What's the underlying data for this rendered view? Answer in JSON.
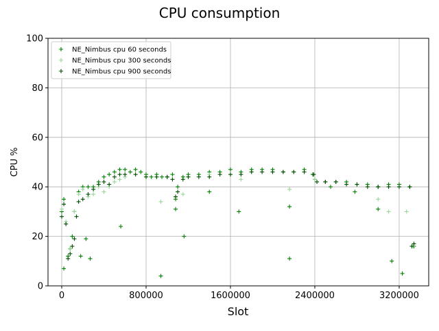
{
  "chart_data": {
    "type": "scatter",
    "title": "CPU consumption",
    "xlabel": "Slot",
    "ylabel": "CPU %",
    "xlim": [
      -130000,
      3480000
    ],
    "ylim": [
      0,
      100
    ],
    "xticks": [
      0,
      800000,
      1600000,
      2400000,
      3200000
    ],
    "xtick_labels": [
      "0",
      "800000",
      "1600000",
      "2400000",
      "3200000"
    ],
    "yticks": [
      0,
      20,
      40,
      60,
      80,
      100
    ],
    "ytick_labels": [
      "0",
      "20",
      "40",
      "60",
      "80",
      "100"
    ],
    "grid": true,
    "legend_position": "top-left",
    "marker": "+",
    "series": [
      {
        "name": "NE_Nimbus cpu 60 seconds",
        "color": "#008000",
        "x": [
          0,
          20000,
          40000,
          60000,
          80000,
          100000,
          120000,
          160000,
          200000,
          250000,
          300000,
          350000,
          400000,
          450000,
          500000,
          550000,
          600000,
          650000,
          700000,
          750000,
          800000,
          850000,
          900000,
          950000,
          1000000,
          1050000,
          1080000,
          1100000,
          1150000,
          1200000,
          1300000,
          1400000,
          1500000,
          1600000,
          1700000,
          1800000,
          1900000,
          2000000,
          2100000,
          2200000,
          2300000,
          2380000,
          2400000,
          2500000,
          2600000,
          2700000,
          2800000,
          2900000,
          3000000,
          3100000,
          3200000,
          3300000,
          3340000,
          20000,
          180000,
          230000,
          270000,
          560000,
          940000,
          1080000,
          1160000,
          1400000,
          1680000,
          2160000,
          2160000,
          2550000,
          2780000,
          3000000,
          3130000,
          3230000
        ],
        "y": [
          30,
          35,
          25,
          12,
          15,
          20,
          30,
          38,
          40,
          40,
          40,
          42,
          44,
          45,
          46,
          47,
          47,
          46,
          47,
          46,
          45,
          44,
          45,
          44,
          44,
          45,
          35,
          40,
          44,
          45,
          45,
          46,
          46,
          47,
          46,
          47,
          47,
          47,
          46,
          46,
          47,
          45,
          43,
          42,
          42,
          42,
          41,
          41,
          40,
          41,
          41,
          40,
          16,
          7,
          12,
          19,
          11,
          24,
          4,
          31,
          20,
          38,
          30,
          11,
          32,
          40,
          38,
          31,
          10,
          5
        ]
      },
      {
        "name": "NE_Nimbus cpu 300 seconds",
        "color": "#99d699",
        "x": [
          0,
          40000,
          80000,
          120000,
          160000,
          200000,
          250000,
          300000,
          350000,
          400000,
          450000,
          500000,
          550000,
          600000,
          700000,
          800000,
          900000,
          940000,
          1000000,
          1080000,
          1150000,
          1200000,
          1400000,
          1600000,
          1700000,
          1800000,
          2000000,
          2160000,
          2200000,
          2400000,
          2600000,
          2800000,
          3000000,
          3100000,
          3200000,
          3270000,
          3330000
        ],
        "y": [
          31,
          26,
          15,
          30,
          37,
          39,
          36,
          37,
          40,
          38,
          40,
          42,
          43,
          44,
          45,
          44,
          44,
          34,
          44,
          36,
          37,
          44,
          45,
          45,
          43,
          46,
          46,
          39,
          46,
          43,
          42,
          41,
          35,
          30,
          40,
          30,
          16
        ]
      },
      {
        "name": "NE_Nimbus cpu 900 seconds",
        "color": "#004d00",
        "x": [
          0,
          20000,
          40000,
          60000,
          80000,
          100000,
          120000,
          140000,
          160000,
          200000,
          250000,
          300000,
          350000,
          400000,
          450000,
          500000,
          550000,
          600000,
          700000,
          800000,
          900000,
          1000000,
          1050000,
          1080000,
          1100000,
          1150000,
          1200000,
          1300000,
          1400000,
          1500000,
          1600000,
          1700000,
          1800000,
          1900000,
          2000000,
          2100000,
          2200000,
          2300000,
          2390000,
          2420000,
          2500000,
          2600000,
          2700000,
          2800000,
          2900000,
          3000000,
          3100000,
          3200000,
          3300000,
          3320000,
          3340000
        ],
        "y": [
          28,
          33,
          25,
          11,
          13,
          16,
          19,
          28,
          34,
          35,
          37,
          39,
          41,
          42,
          41,
          44,
          45,
          45,
          45,
          44,
          44,
          44,
          43,
          36,
          38,
          43,
          44,
          44,
          44,
          45,
          45,
          45,
          46,
          46,
          46,
          46,
          46,
          46,
          45,
          42,
          42,
          42,
          41,
          41,
          40,
          40,
          40,
          40,
          40,
          16,
          17
        ]
      }
    ]
  }
}
